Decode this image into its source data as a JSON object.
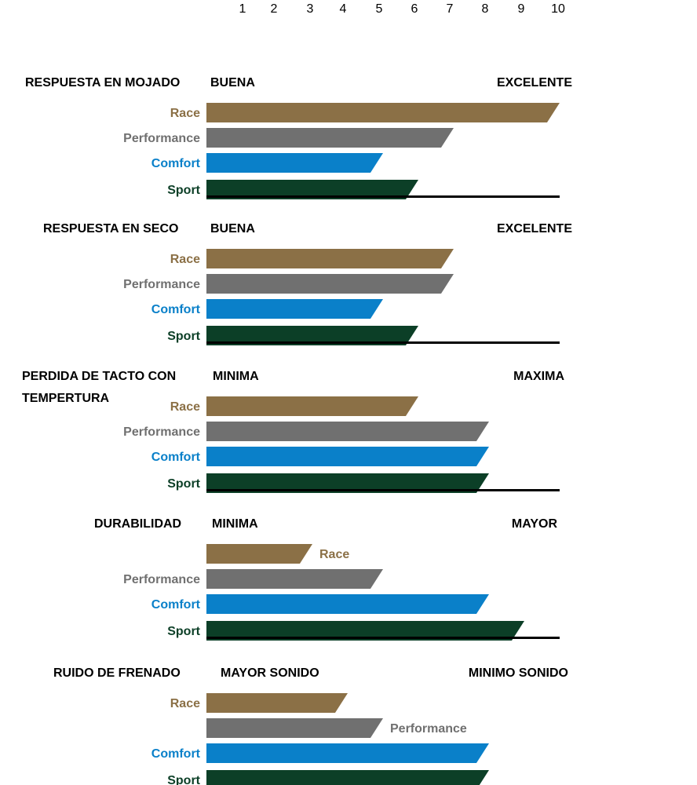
{
  "chart_data": {
    "type": "bar",
    "orientation": "horizontal",
    "xlim": [
      0,
      10
    ],
    "x_ticks": [
      "1",
      "2",
      "3",
      "4",
      "5",
      "6",
      "7",
      "8",
      "9",
      "10"
    ],
    "colors": {
      "Race": "#8b7046",
      "Performance": "#707070",
      "Comfort": "#0a80c9",
      "Sport": "#0c3f27"
    },
    "panels": [
      {
        "title": [
          "RESPUESTA  EN MOJADO"
        ],
        "left_label": "BUENA",
        "right_label": "EXCELENTE",
        "series": [
          {
            "name": "Race",
            "value": 10
          },
          {
            "name": "Performance",
            "value": 7
          },
          {
            "name": "Comfort",
            "value": 5
          },
          {
            "name": "Sport",
            "value": 6
          }
        ]
      },
      {
        "title": [
          "RESPUESTA  EN SECO"
        ],
        "left_label": "BUENA",
        "right_label": "EXCELENTE",
        "series": [
          {
            "name": "Race",
            "value": 7
          },
          {
            "name": "Performance",
            "value": 7
          },
          {
            "name": "Comfort",
            "value": 5
          },
          {
            "name": "Sport",
            "value": 6
          }
        ]
      },
      {
        "title": [
          "PERDIDA DE TACTO CON",
          "TEMPERTURA"
        ],
        "left_label": "MINIMA",
        "right_label": "MAXIMA",
        "series": [
          {
            "name": "Race",
            "value": 6
          },
          {
            "name": "Performance",
            "value": 8
          },
          {
            "name": "Comfort",
            "value": 8
          },
          {
            "name": "Sport",
            "value": 8
          }
        ]
      },
      {
        "title": [
          "DURABILIDAD"
        ],
        "left_label": "MINIMA",
        "right_label": "MAYOR",
        "series": [
          {
            "name": "Race",
            "value": 3,
            "label_position": "after"
          },
          {
            "name": "Performance",
            "value": 5
          },
          {
            "name": "Comfort",
            "value": 8
          },
          {
            "name": "Sport",
            "value": 9
          }
        ]
      },
      {
        "title": [
          "RUIDO DE FRENADO"
        ],
        "left_label": "MAYOR SONIDO",
        "right_label": "MINIMO SONIDO",
        "series": [
          {
            "name": "Race",
            "value": 4
          },
          {
            "name": "Performance",
            "value": 5,
            "label_position": "after"
          },
          {
            "name": "Comfort",
            "value": 8
          },
          {
            "name": "Sport",
            "value": 8
          }
        ]
      }
    ]
  }
}
